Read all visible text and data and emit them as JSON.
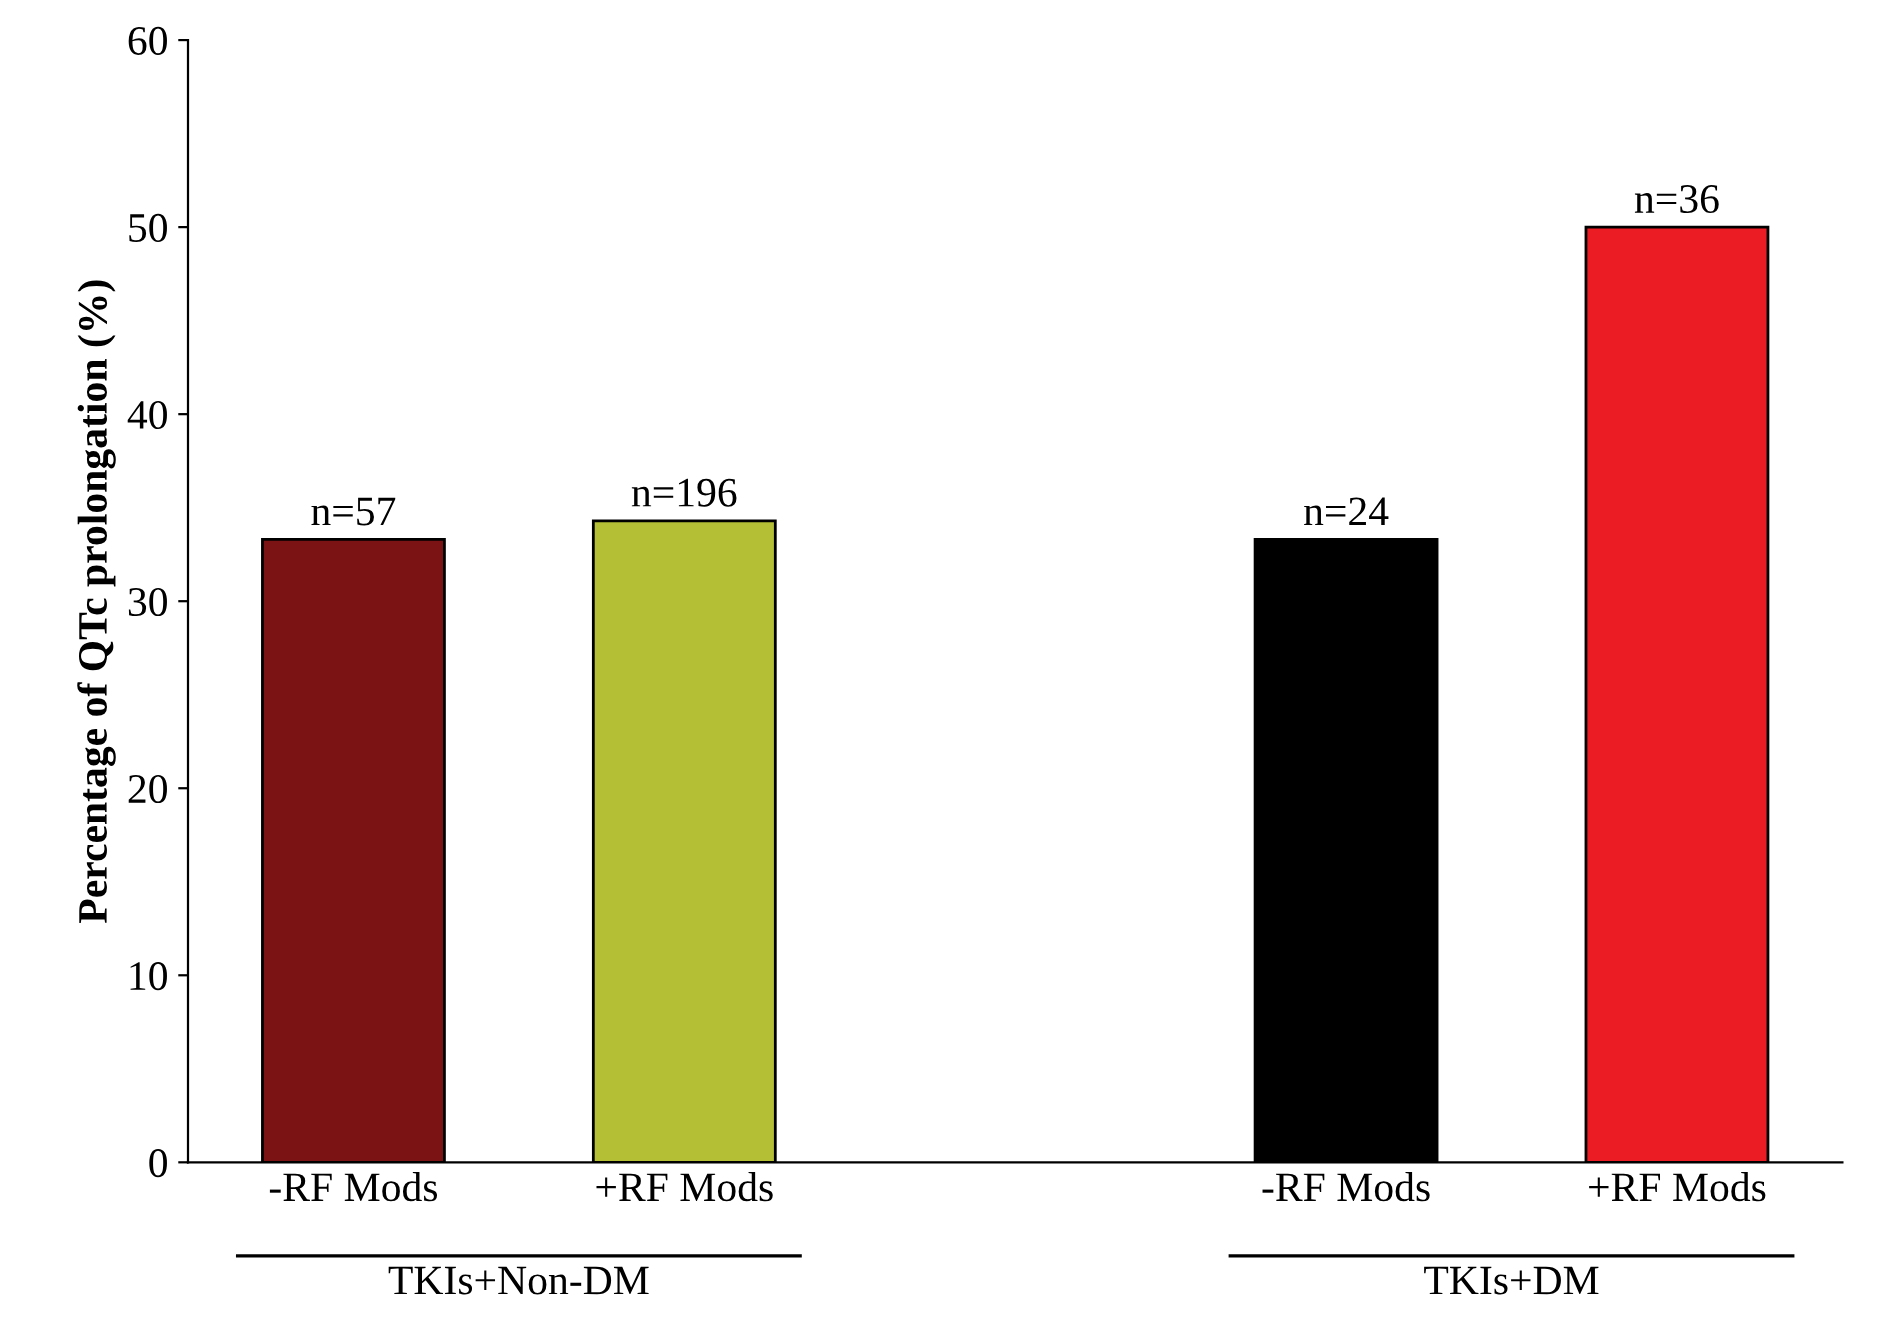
{
  "chart_data": {
    "type": "bar",
    "ylabel": "Percentage of QTc prolongation (%)",
    "categories": [
      "-RF Mods",
      "+RF Mods",
      null,
      "-RF Mods",
      "+RF Mods"
    ],
    "values": [
      33.3,
      34.3,
      null,
      33.3,
      50
    ],
    "colors": [
      "#7b1214",
      "#b5bf35",
      "#ffffff",
      "#000000",
      "#ec1c24"
    ],
    "annotations": [
      "n=57",
      "n=196",
      "n=24",
      "n=36",
      "TKIs+Non-DM",
      "TKIs+DM"
    ],
    "ylim": [
      0,
      60
    ],
    "yticks": [
      0,
      10,
      20,
      30,
      40,
      50,
      60
    ],
    "grid": false,
    "legend": false
  }
}
